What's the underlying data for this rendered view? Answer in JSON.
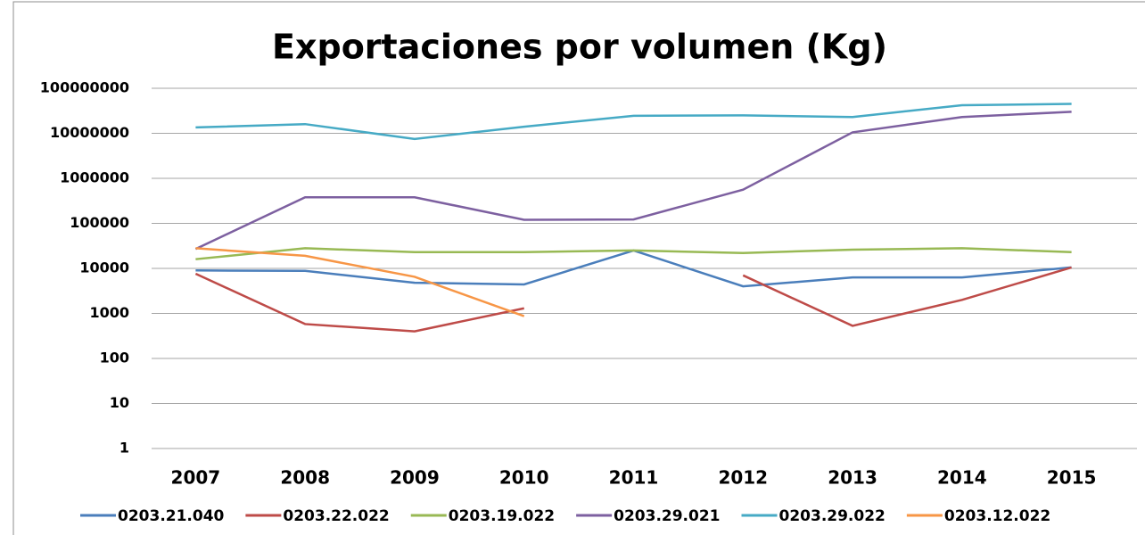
{
  "chart_data": {
    "type": "line",
    "title": "Exportaciones por volumen (Kg)",
    "categories": [
      "2007",
      "2008",
      "2009",
      "2010",
      "2011",
      "2012",
      "2013",
      "2014",
      "2015"
    ],
    "series": [
      {
        "name": "0203.21.040",
        "color": "#4a7ebb",
        "values": [
          9000,
          8800,
          4800,
          4400,
          25000,
          4000,
          6300,
          6300,
          10500
        ]
      },
      {
        "name": "0203.22.022",
        "color": "#be4b48",
        "values": [
          7600,
          580,
          400,
          1300,
          null,
          7000,
          530,
          2000,
          10500
        ]
      },
      {
        "name": "0203.19.022",
        "color": "#98b954",
        "values": [
          16000,
          28000,
          23000,
          23000,
          25000,
          22000,
          26000,
          28000,
          23000
        ]
      },
      {
        "name": "0203.29.021",
        "color": "#7d60a0",
        "values": [
          27000,
          380000,
          380000,
          120000,
          122000,
          560000,
          10500000,
          23000000,
          30000000
        ]
      },
      {
        "name": "0203.29.022",
        "color": "#46aac5",
        "values": [
          13500000,
          16000000,
          7500000,
          14000000,
          24500000,
          25000000,
          23000000,
          42000000,
          45000000
        ]
      },
      {
        "name": "0203.12.022",
        "color": "#f79646",
        "values": [
          28000,
          19000,
          6500,
          870,
          null,
          null,
          null,
          null,
          null
        ]
      }
    ],
    "ylim": [
      1,
      100000000
    ],
    "yticks": [
      1,
      10,
      100,
      1000,
      10000,
      100000,
      1000000,
      10000000,
      100000000
    ],
    "log_y": true,
    "grid": true,
    "legend": "bottom"
  }
}
